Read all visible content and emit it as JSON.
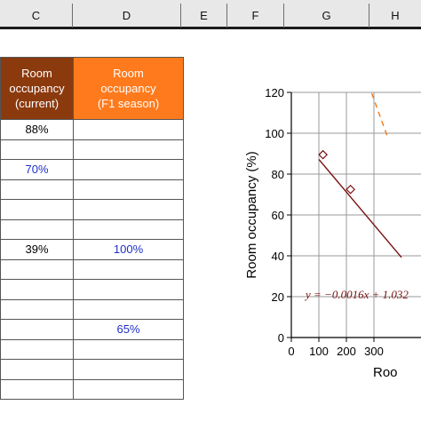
{
  "columns": [
    "C",
    "D",
    "E",
    "F",
    "G",
    "H"
  ],
  "table": {
    "header_current": [
      "Room",
      "occupancy",
      "(current)"
    ],
    "header_f1": [
      "Room",
      "occupancy",
      "(F1 season)"
    ],
    "rows": [
      {
        "current": "88%",
        "current_color": "black",
        "f1": "",
        "f1_color": "blue"
      },
      {
        "current": "",
        "current_color": "black",
        "f1": "",
        "f1_color": "blue"
      },
      {
        "current": "70%",
        "current_color": "blue",
        "f1": "",
        "f1_color": "blue"
      },
      {
        "current": "",
        "current_color": "black",
        "f1": "",
        "f1_color": "blue"
      },
      {
        "current": "",
        "current_color": "black",
        "f1": "",
        "f1_color": "blue"
      },
      {
        "current": "",
        "current_color": "black",
        "f1": "",
        "f1_color": "blue"
      },
      {
        "current": "39%",
        "current_color": "black",
        "f1": "100%",
        "f1_color": "blue"
      },
      {
        "current": "",
        "current_color": "black",
        "f1": "",
        "f1_color": "blue"
      },
      {
        "current": "",
        "current_color": "black",
        "f1": "",
        "f1_color": "blue"
      },
      {
        "current": "",
        "current_color": "black",
        "f1": "",
        "f1_color": "blue"
      },
      {
        "current": "",
        "current_color": "black",
        "f1": "65%",
        "f1_color": "blue"
      },
      {
        "current": "",
        "current_color": "black",
        "f1": "",
        "f1_color": "blue"
      },
      {
        "current": "",
        "current_color": "black",
        "f1": "",
        "f1_color": "blue"
      },
      {
        "current": "",
        "current_color": "black",
        "f1": "",
        "f1_color": "blue"
      }
    ]
  },
  "colors": {
    "header_current": "#8b3a0e",
    "header_f1": "#ff7a1c",
    "value_blue": "#1f2fc8",
    "trendline": "#7a1010",
    "f1_dashed": "#f07a1c"
  },
  "chart_data": {
    "type": "scatter",
    "ylabel": "Room occupancy (%)",
    "xlabel": "Roo",
    "x_ticks": [
      "0",
      "100",
      "200",
      "300"
    ],
    "y_ticks": [
      "0",
      "20",
      "40",
      "60",
      "80",
      "100",
      "120"
    ],
    "xlim": [
      0,
      350
    ],
    "ylim": [
      0,
      120
    ],
    "grid": true,
    "series": [
      {
        "points": [
          {
            "x": 115,
            "y": 89.5
          },
          {
            "x": 215,
            "y": 72.5
          }
        ]
      }
    ],
    "trendline": {
      "slope": -0.0016,
      "intercept": 1.032,
      "label": "y = −0.0016x + 1.032"
    },
    "f1_line": {
      "x": [
        280,
        350
      ],
      "y": [
        124,
        98
      ]
    }
  }
}
